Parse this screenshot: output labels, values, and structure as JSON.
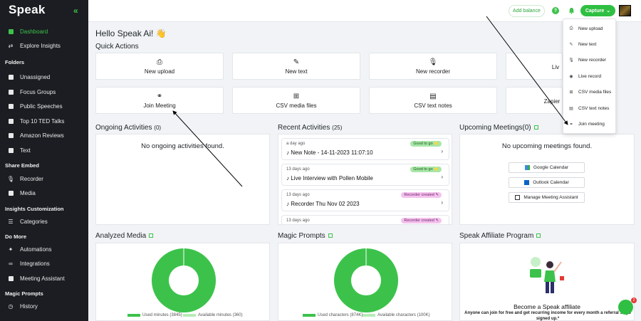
{
  "sidebar": {
    "logo": "Speak",
    "collapse_icon": "«",
    "items": [
      {
        "label": "Dashboard",
        "icon": "grid-icon",
        "active": true
      },
      {
        "label": "Explore Insights",
        "icon": "shuffle-icon"
      }
    ],
    "folders_heading": "Folders",
    "folders": [
      "Unassigned",
      "Focus Groups",
      "Public Speeches",
      "Top 10 TED Talks",
      "Amazon Reviews",
      "Text"
    ],
    "share_embed_heading": "Share Embed",
    "share_embed": [
      "Recorder",
      "Media"
    ],
    "insights_heading": "Insights Customization",
    "insights": [
      "Categories"
    ],
    "do_more_heading": "Do More",
    "do_more": [
      "Automations",
      "Integrations",
      "Meeting Assistant"
    ],
    "magic_heading": "Magic Prompts",
    "magic": [
      "History"
    ]
  },
  "topbar": {
    "add_balance": "Add balance",
    "capture": "Capture",
    "help": "?"
  },
  "capture_menu": [
    "New upload",
    "New text",
    "New recorder",
    "Live record",
    "CSV media files",
    "CSV text notes",
    "Join meeting"
  ],
  "greeting": "Hello Speak Ai! 👋",
  "quick_actions": {
    "title": "Quick Actions",
    "row1": [
      {
        "label": "New upload",
        "icon": "⎙"
      },
      {
        "label": "New text",
        "icon": "✎"
      },
      {
        "label": "New recorder",
        "icon": "🎙"
      },
      {
        "label": "Liv",
        "icon": ""
      }
    ],
    "row2": [
      {
        "label": "Join Meeting",
        "icon": "⚭"
      },
      {
        "label": "CSV media files",
        "icon": "⊞"
      },
      {
        "label": "CSV text notes",
        "icon": "▤"
      },
      {
        "label": "Zapier",
        "icon": ""
      }
    ]
  },
  "ongoing": {
    "title": "Ongoing Activities",
    "count": "(0)",
    "empty": "No ongoing activities found."
  },
  "recent": {
    "title": "Recent Activities",
    "count": "(25)",
    "items": [
      {
        "when": "a day ago",
        "title": "New Note - 14-11-2023 11:07:10",
        "badge": "Good to go ⭐",
        "badge_type": "good"
      },
      {
        "when": "13 days ago",
        "title": "Live Interview with Pollen Mobile",
        "badge": "Good to go ⭐",
        "badge_type": "good"
      },
      {
        "when": "13 days ago",
        "title": "Recorder Thu Nov 02 2023",
        "badge": "Recorder created ✎",
        "badge_type": "rec"
      },
      {
        "when": "13 days ago",
        "title": "",
        "badge": "Recorder created ✎",
        "badge_type": "rec"
      }
    ]
  },
  "upcoming": {
    "title": "Upcoming Meetings",
    "count": "(0)",
    "empty": "No upcoming meetings found.",
    "buttons": [
      "Google Calendar",
      "Outlook Calendar",
      "Manage Meeting Assistant"
    ]
  },
  "analyzed": {
    "title": "Analyzed Media",
    "legend_used": "Used minutes (3845)",
    "legend_avail": "Available minutes (360)"
  },
  "magic_prompts": {
    "title": "Magic Prompts",
    "legend_used": "Used characters (874K)",
    "legend_avail": "Available characters (100K)"
  },
  "affiliate": {
    "title": "Speak Affiliate Program",
    "heading": "Become a Speak affiliate",
    "body": "Anyone can join for free and get recurring income for every month a referral stays signed up.*"
  },
  "chat_badge": "2",
  "colors": {
    "accent": "#3cc24b",
    "sidebar": "#1b1d22",
    "used": "#3cc24b",
    "available": "#b7ecb7"
  }
}
